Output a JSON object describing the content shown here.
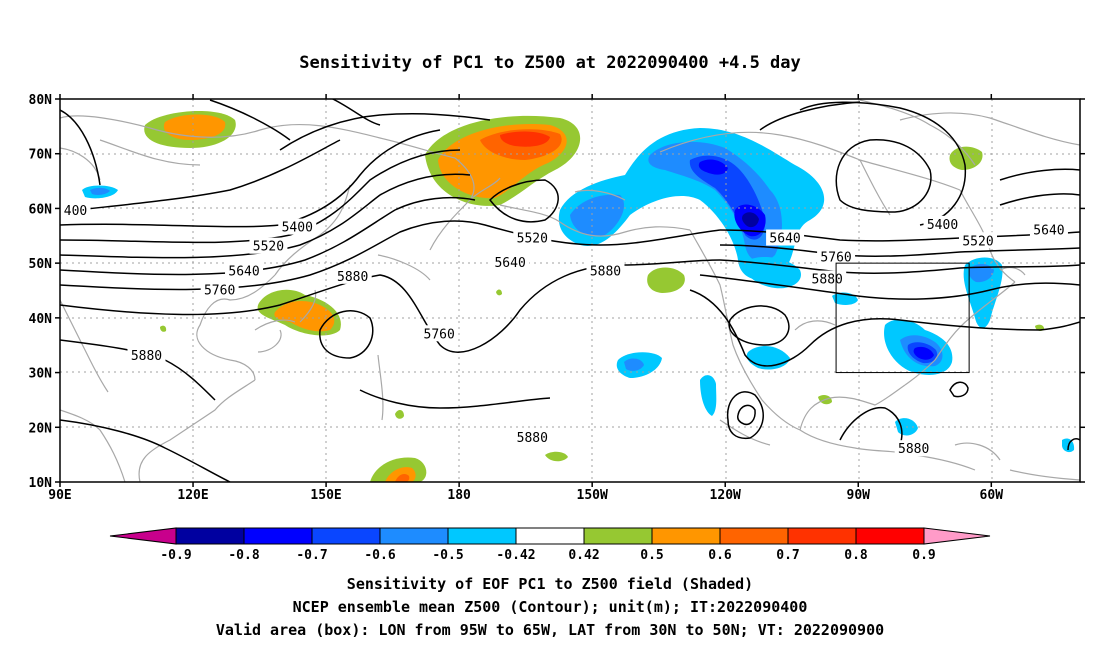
{
  "title": "Sensitivity of PC1 to Z500 at 2022090400 +4.5 day",
  "axes": {
    "lat_ticks": [
      "80N",
      "70N",
      "60N",
      "50N",
      "40N",
      "30N",
      "20N",
      "10N"
    ],
    "lon_ticks": [
      "90E",
      "120E",
      "150E",
      "180",
      "150W",
      "120W",
      "90W",
      "60W"
    ],
    "lon_range": [
      90,
      320
    ],
    "lat_range": [
      10,
      80
    ],
    "grid": "dotted"
  },
  "contour_labels": [
    {
      "text": "400",
      "lon": 93.5,
      "lat": 59.5
    },
    {
      "text": "5400",
      "lon": 143.5,
      "lat": 56.5
    },
    {
      "text": "5520",
      "lon": 137,
      "lat": 53
    },
    {
      "text": "5640",
      "lon": 131.5,
      "lat": 48.5
    },
    {
      "text": "5760",
      "lon": 126,
      "lat": 45
    },
    {
      "text": "5880",
      "lon": 156,
      "lat": 47.5
    },
    {
      "text": "5880",
      "lon": 109.5,
      "lat": 33
    },
    {
      "text": "5760",
      "lon": 175.5,
      "lat": 37
    },
    {
      "text": "5520",
      "lon": 196.5,
      "lat": 54.5
    },
    {
      "text": "5640",
      "lon": 191.5,
      "lat": 50
    },
    {
      "text": "5880",
      "lon": 213,
      "lat": 48.5
    },
    {
      "text": "5640",
      "lon": 253.5,
      "lat": 54.5
    },
    {
      "text": "5760",
      "lon": 265,
      "lat": 51
    },
    {
      "text": "5880",
      "lon": 263,
      "lat": 47
    },
    {
      "text": "5400",
      "lon": 289,
      "lat": 57
    },
    {
      "text": "5520",
      "lon": 297,
      "lat": 54
    },
    {
      "text": "5640",
      "lon": 313,
      "lat": 56
    },
    {
      "text": "5880",
      "lon": 196.5,
      "lat": 18
    },
    {
      "text": "5880",
      "lon": 282.5,
      "lat": 16
    }
  ],
  "valid_box": {
    "lon_west": 265,
    "lon_east": 295,
    "lat_south": 30,
    "lat_north": 50
  },
  "colorbar": {
    "labels": [
      "-0.9",
      "-0.8",
      "-0.7",
      "-0.6",
      "-0.5",
      "-0.42",
      "0.42",
      "0.5",
      "0.6",
      "0.7",
      "0.8",
      "0.9"
    ],
    "colors": [
      "#c8008c",
      "#0000a0",
      "#0000ff",
      "#0a46ff",
      "#1e8cff",
      "#00c8ff",
      "#ffffff",
      "#96c832",
      "#ff9600",
      "#ff6400",
      "#ff3200",
      "#ff0000",
      "#ff9bc8"
    ]
  },
  "caption": [
    "Sensitivity of EOF PC1 to Z500 field (Shaded)",
    "NCEP ensemble mean Z500 (Contour); unit(m); IT:2022090400",
    "Valid area (box): LON from 95W to 65W, LAT from 30N to 50N; VT: 2022090900"
  ]
}
